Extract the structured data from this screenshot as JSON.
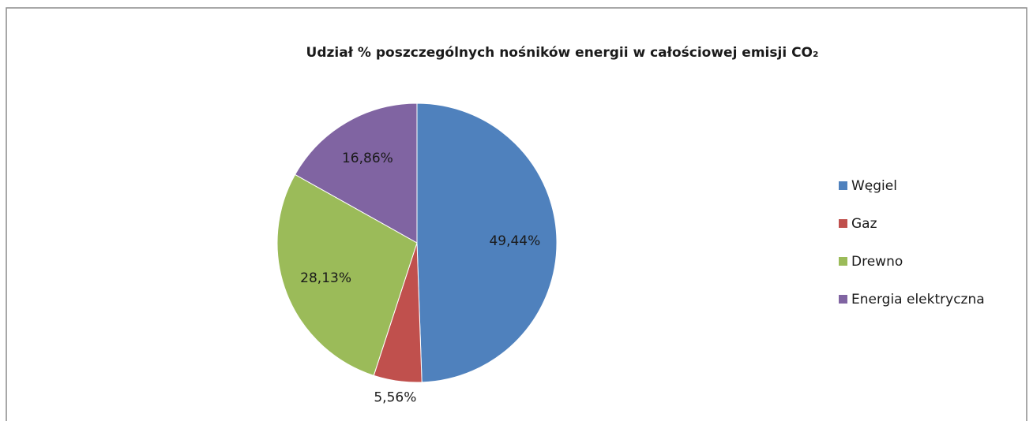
{
  "chart_data": {
    "type": "pie",
    "title": "Udział % poszczególnych nośników energii w całościowej emisji CO₂",
    "categories": [
      "Węgiel",
      "Gaz",
      "Drewno",
      "Energia elektryczna"
    ],
    "values": [
      49.44,
      5.56,
      28.13,
      16.86
    ],
    "value_labels": [
      "49,44%",
      "5,56%",
      "28,13%",
      "16,86%"
    ],
    "colors": [
      "#4f81bd",
      "#c0504d",
      "#9bbb59",
      "#8064a2"
    ],
    "legend": "right"
  }
}
